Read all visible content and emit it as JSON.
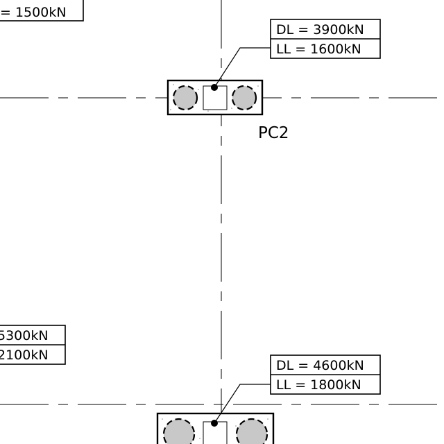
{
  "labels": {
    "top_left_partial": "= 1500kN",
    "pc2_dead_load": "DL = 3900kN",
    "pc2_live_load": "LL = 1600kN",
    "pc2_tag": "PC2",
    "left_partial_dead_load": "5300kN",
    "left_partial_live_load": "2100kN",
    "bottom_dead_load": "DL = 4600kN",
    "bottom_live_load": "LL = 1800kN"
  },
  "colors": {
    "line": "#000000",
    "pile_fill": "#c8c8c8",
    "background": "#ffffff"
  }
}
